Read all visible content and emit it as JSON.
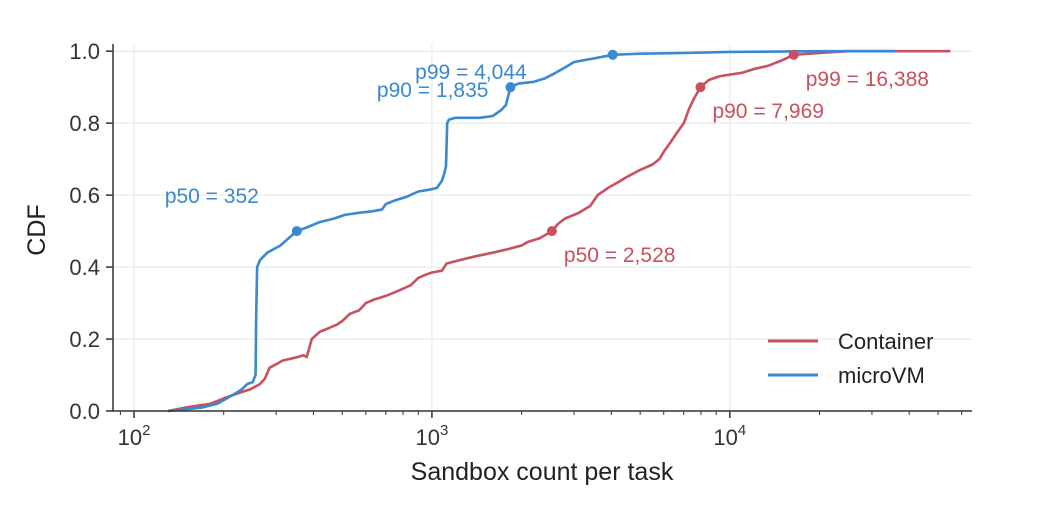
{
  "chart_data": {
    "type": "line",
    "xlabel": "Sandbox count per task",
    "ylabel": "CDF",
    "x_scale": "log",
    "xlim": [
      85,
      65000
    ],
    "ylim": [
      0,
      1.02
    ],
    "x_ticks": [
      {
        "value": 100,
        "base": "10",
        "exp": "2"
      },
      {
        "value": 1000,
        "base": "10",
        "exp": "3"
      },
      {
        "value": 10000,
        "base": "10",
        "exp": "4"
      }
    ],
    "y_ticks": [
      {
        "value": 0.0,
        "label": "0.0"
      },
      {
        "value": 0.2,
        "label": "0.2"
      },
      {
        "value": 0.4,
        "label": "0.4"
      },
      {
        "value": 0.6,
        "label": "0.6"
      },
      {
        "value": 0.8,
        "label": "0.8"
      },
      {
        "value": 1.0,
        "label": "1.0"
      }
    ],
    "grid": true,
    "legend_position": "bottom-right",
    "series": [
      {
        "name": "Container",
        "color": "#c8505f",
        "points": [
          [
            130,
            0.0
          ],
          [
            150,
            0.01
          ],
          [
            180,
            0.02
          ],
          [
            200,
            0.035
          ],
          [
            225,
            0.05
          ],
          [
            245,
            0.06
          ],
          [
            265,
            0.075
          ],
          [
            275,
            0.09
          ],
          [
            285,
            0.12
          ],
          [
            300,
            0.13
          ],
          [
            315,
            0.14
          ],
          [
            335,
            0.145
          ],
          [
            355,
            0.15
          ],
          [
            370,
            0.155
          ],
          [
            380,
            0.15
          ],
          [
            395,
            0.2
          ],
          [
            420,
            0.22
          ],
          [
            450,
            0.23
          ],
          [
            480,
            0.24
          ],
          [
            500,
            0.25
          ],
          [
            530,
            0.27
          ],
          [
            570,
            0.28
          ],
          [
            600,
            0.3
          ],
          [
            640,
            0.31
          ],
          [
            700,
            0.32
          ],
          [
            750,
            0.33
          ],
          [
            800,
            0.34
          ],
          [
            850,
            0.35
          ],
          [
            900,
            0.37
          ],
          [
            960,
            0.38
          ],
          [
            1000,
            0.385
          ],
          [
            1080,
            0.39
          ],
          [
            1120,
            0.41
          ],
          [
            1250,
            0.42
          ],
          [
            1400,
            0.43
          ],
          [
            1600,
            0.44
          ],
          [
            1800,
            0.45
          ],
          [
            2000,
            0.46
          ],
          [
            2100,
            0.47
          ],
          [
            2300,
            0.48
          ],
          [
            2528,
            0.5
          ],
          [
            2650,
            0.52
          ],
          [
            2800,
            0.535
          ],
          [
            3100,
            0.55
          ],
          [
            3400,
            0.57
          ],
          [
            3600,
            0.6
          ],
          [
            3900,
            0.62
          ],
          [
            4200,
            0.635
          ],
          [
            4500,
            0.65
          ],
          [
            5000,
            0.67
          ],
          [
            5500,
            0.685
          ],
          [
            5800,
            0.7
          ],
          [
            6000,
            0.72
          ],
          [
            6300,
            0.745
          ],
          [
            6600,
            0.77
          ],
          [
            7000,
            0.8
          ],
          [
            7300,
            0.84
          ],
          [
            7600,
            0.87
          ],
          [
            7969,
            0.9
          ],
          [
            8500,
            0.92
          ],
          [
            9200,
            0.93
          ],
          [
            10000,
            0.935
          ],
          [
            11000,
            0.94
          ],
          [
            12000,
            0.95
          ],
          [
            13500,
            0.96
          ],
          [
            15000,
            0.975
          ],
          [
            16388,
            0.99
          ],
          [
            20000,
            0.995
          ],
          [
            25000,
            1.0
          ],
          [
            55000,
            1.0
          ]
        ]
      },
      {
        "name": "microVM",
        "color": "#3888d2",
        "points": [
          [
            130,
            0.0
          ],
          [
            150,
            0.005
          ],
          [
            170,
            0.01
          ],
          [
            190,
            0.02
          ],
          [
            205,
            0.035
          ],
          [
            220,
            0.05
          ],
          [
            230,
            0.06
          ],
          [
            240,
            0.075
          ],
          [
            250,
            0.08
          ],
          [
            256,
            0.1
          ],
          [
            257,
            0.25
          ],
          [
            259,
            0.4
          ],
          [
            265,
            0.42
          ],
          [
            280,
            0.44
          ],
          [
            310,
            0.46
          ],
          [
            330,
            0.48
          ],
          [
            352,
            0.5
          ],
          [
            380,
            0.51
          ],
          [
            420,
            0.525
          ],
          [
            470,
            0.535
          ],
          [
            510,
            0.545
          ],
          [
            560,
            0.55
          ],
          [
            630,
            0.555
          ],
          [
            680,
            0.56
          ],
          [
            700,
            0.575
          ],
          [
            750,
            0.585
          ],
          [
            820,
            0.595
          ],
          [
            900,
            0.61
          ],
          [
            980,
            0.615
          ],
          [
            1040,
            0.62
          ],
          [
            1080,
            0.64
          ],
          [
            1100,
            0.66
          ],
          [
            1115,
            0.68
          ],
          [
            1120,
            0.74
          ],
          [
            1125,
            0.8
          ],
          [
            1140,
            0.81
          ],
          [
            1200,
            0.815
          ],
          [
            1450,
            0.815
          ],
          [
            1600,
            0.82
          ],
          [
            1700,
            0.835
          ],
          [
            1770,
            0.85
          ],
          [
            1835,
            0.9
          ],
          [
            1950,
            0.91
          ],
          [
            2200,
            0.915
          ],
          [
            2400,
            0.925
          ],
          [
            2600,
            0.94
          ],
          [
            2800,
            0.955
          ],
          [
            3000,
            0.97
          ],
          [
            3500,
            0.98
          ],
          [
            4044,
            0.99
          ],
          [
            5000,
            0.993
          ],
          [
            7000,
            0.995
          ],
          [
            10000,
            0.998
          ],
          [
            20000,
            1.0
          ],
          [
            36000,
            1.0
          ]
        ]
      }
    ],
    "markers": [
      {
        "series": "microVM",
        "x": 352,
        "y": 0.5,
        "label": "p50 = 352",
        "color": "#3888d2"
      },
      {
        "series": "microVM",
        "x": 1835,
        "y": 0.9,
        "label": "p90 = 1,835",
        "color": "#3888d2"
      },
      {
        "series": "microVM",
        "x": 4044,
        "y": 0.99,
        "label": "p99 = 4,044",
        "color": "#3888d2"
      },
      {
        "series": "Container",
        "x": 2528,
        "y": 0.5,
        "label": "p50 = 2,528",
        "color": "#c8505f"
      },
      {
        "series": "Container",
        "x": 7969,
        "y": 0.9,
        "label": "p90 = 7,969",
        "color": "#c8505f"
      },
      {
        "series": "Container",
        "x": 16388,
        "y": 0.99,
        "label": "p99 = 16,388",
        "color": "#c8505f"
      }
    ]
  }
}
